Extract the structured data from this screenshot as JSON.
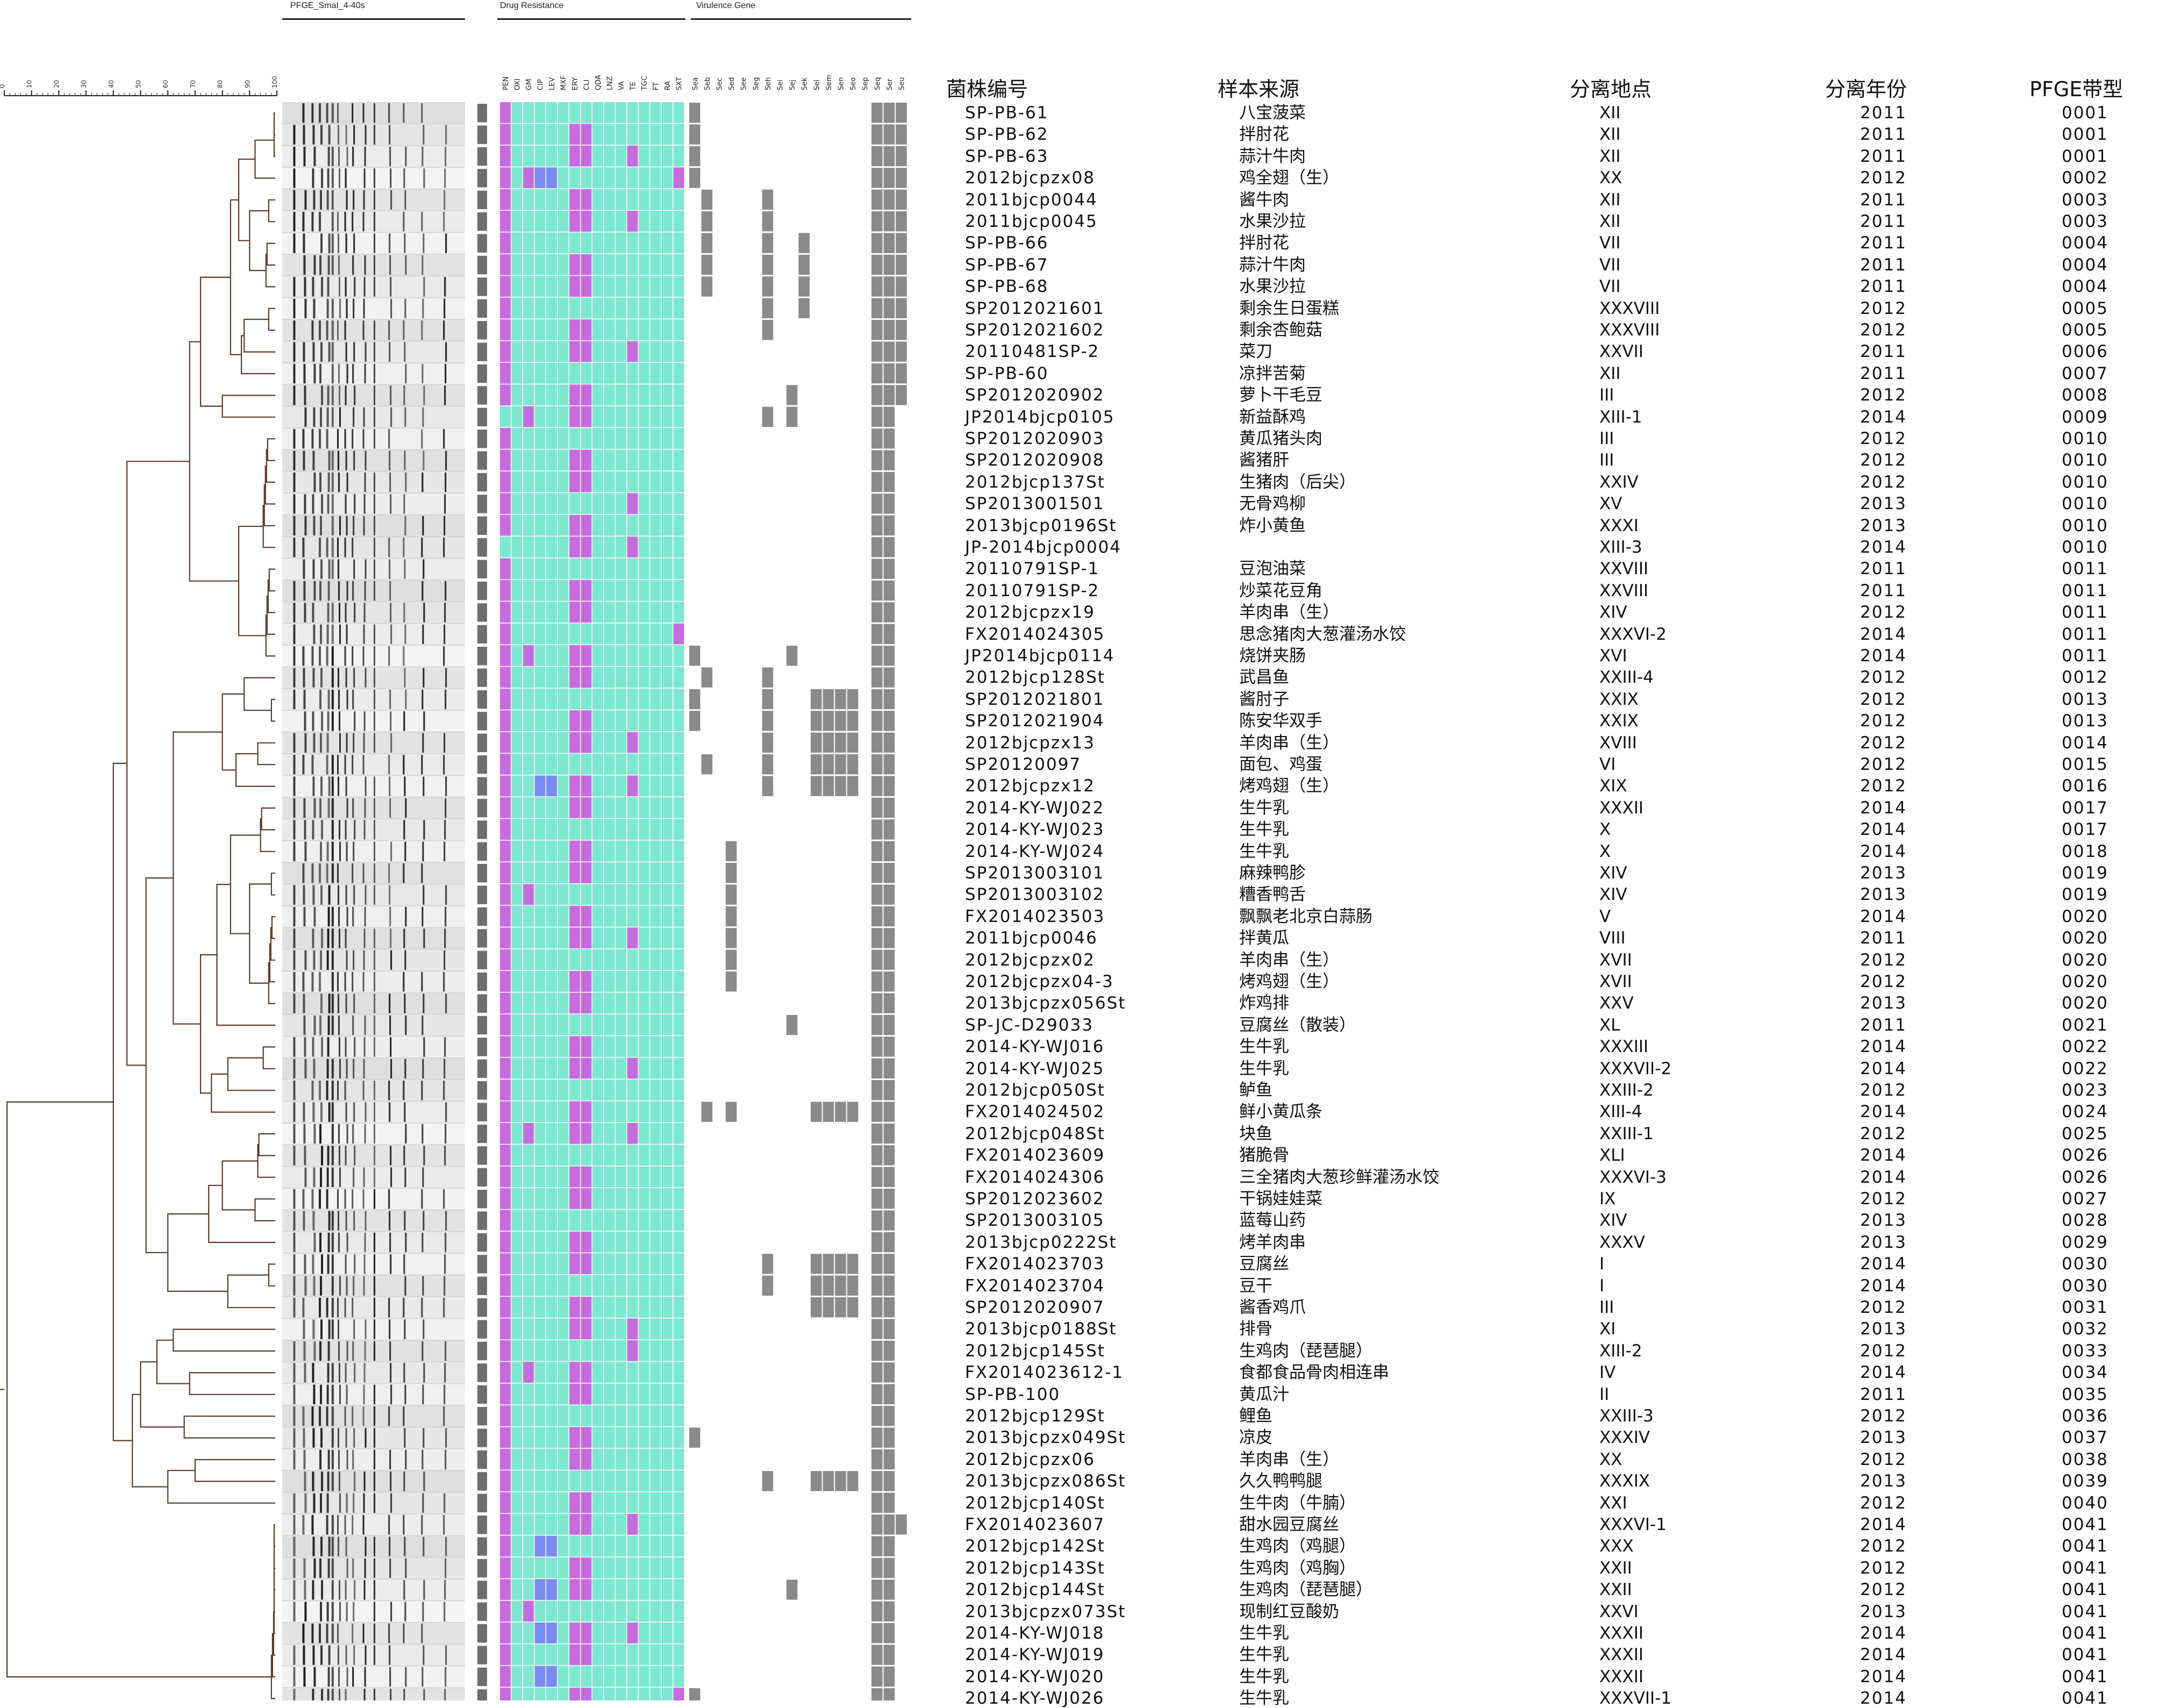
{
  "sections": {
    "pfge_label": "PFGE_SmaI_4-40s",
    "drug_label": "Drug Resistance",
    "virulence_label": "Virulence Gene"
  },
  "scale_ticks": [
    "0",
    "10",
    "20",
    "30",
    "40",
    "50",
    "60",
    "70",
    "80",
    "90",
    "100"
  ],
  "drug_names": [
    "PEN",
    "OXI",
    "GM",
    "CIP",
    "LEV",
    "MXF",
    "ERY",
    "CLI",
    "QDA",
    "LNZ",
    "VA",
    "TE",
    "TGC",
    "FT",
    "RA",
    "SXT"
  ],
  "gene_names": [
    "Sea",
    "Seb",
    "Sec",
    "Sed",
    "See",
    "Seg",
    "Seh",
    "Sei",
    "Sej",
    "Sek",
    "Sel",
    "Sem",
    "Sen",
    "Seo",
    "Sep",
    "Seq",
    "Ser",
    "Seu"
  ],
  "headers": [
    "菌株编号",
    "样本来源",
    "分离地点",
    "分离年份",
    "PFGE带型"
  ],
  "colors": {
    "resistant": "#c76be0",
    "intermediate": "#7a8cf0",
    "sensitive": "#7de8d0",
    "gene_present": "#8a8a8a",
    "marker": "#6e6e6e"
  },
  "rows": [
    [
      "SP-PB-61",
      "八宝菠菜",
      "XII",
      "2011",
      "0001"
    ],
    [
      "SP-PB-62",
      "拌肘花",
      "XII",
      "2011",
      "0001"
    ],
    [
      "SP-PB-63",
      "蒜汁牛肉",
      "XII",
      "2011",
      "0001"
    ],
    [
      "2012bjcpzx08",
      "鸡全翅（生）",
      "XX",
      "2012",
      "0002"
    ],
    [
      "2011bjcp0044",
      "酱牛肉",
      "XII",
      "2011",
      "0003"
    ],
    [
      "2011bjcp0045",
      "水果沙拉",
      "XII",
      "2011",
      "0003"
    ],
    [
      "SP-PB-66",
      "拌肘花",
      "VII",
      "2011",
      "0004"
    ],
    [
      "SP-PB-67",
      "蒜汁牛肉",
      "VII",
      "2011",
      "0004"
    ],
    [
      "SP-PB-68",
      "水果沙拉",
      "VII",
      "2011",
      "0004"
    ],
    [
      "SP2012021601",
      "剩余生日蛋糕",
      "XXXVIII",
      "2012",
      "0005"
    ],
    [
      "SP2012021602",
      "剩余杏鲍菇",
      "XXXVIII",
      "2012",
      "0005"
    ],
    [
      "20110481SP-2",
      "菜刀",
      "XXVII",
      "2011",
      "0006"
    ],
    [
      "SP-PB-60",
      "凉拌苦菊",
      "XII",
      "2011",
      "0007"
    ],
    [
      "SP2012020902",
      "萝卜干毛豆",
      "III",
      "2012",
      "0008"
    ],
    [
      "JP2014bjcp0105",
      "新益酥鸡",
      "XIII-1",
      "2014",
      "0009"
    ],
    [
      "SP2012020903",
      "黄瓜猪头肉",
      "III",
      "2012",
      "0010"
    ],
    [
      "SP2012020908",
      "酱猪肝",
      "III",
      "2012",
      "0010"
    ],
    [
      "2012bjcp137St",
      "生猪肉（后尖）",
      "XXIV",
      "2012",
      "0010"
    ],
    [
      "SP2013001501",
      "无骨鸡柳",
      "XV",
      "2013",
      "0010"
    ],
    [
      "2013bjcp0196St",
      "炸小黄鱼",
      "XXXI",
      "2013",
      "0010"
    ],
    [
      "JP-2014bjcp0004",
      "",
      "XIII-3",
      "2014",
      "0010"
    ],
    [
      "20110791SP-1",
      "豆泡油菜",
      "XXVIII",
      "2011",
      "0011"
    ],
    [
      "20110791SP-2",
      "炒菜花豆角",
      "XXVIII",
      "2011",
      "0011"
    ],
    [
      "2012bjcpzx19",
      "羊肉串（生）",
      "XIV",
      "2012",
      "0011"
    ],
    [
      "FX2014024305",
      "思念猪肉大葱灌汤水饺",
      "XXXVI-2",
      "2014",
      "0011"
    ],
    [
      "JP2014bjcp0114",
      "烧饼夹肠",
      "XVI",
      "2014",
      "0011"
    ],
    [
      "2012bjcp128St",
      "武昌鱼",
      "XXIII-4",
      "2012",
      "0012"
    ],
    [
      "SP2012021801",
      "酱肘子",
      "XXIX",
      "2012",
      "0013"
    ],
    [
      "SP2012021904",
      "陈安华双手",
      "XXIX",
      "2012",
      "0013"
    ],
    [
      "2012bjcpzx13",
      "羊肉串（生）",
      "XVIII",
      "2012",
      "0014"
    ],
    [
      "SP20120097",
      "面包、鸡蛋",
      "VI",
      "2012",
      "0015"
    ],
    [
      "2012bjcpzx12",
      "烤鸡翅（生）",
      "XIX",
      "2012",
      "0016"
    ],
    [
      "2014-KY-WJ022",
      "生牛乳",
      "XXXII",
      "2014",
      "0017"
    ],
    [
      "2014-KY-WJ023",
      "生牛乳",
      "X",
      "2014",
      "0017"
    ],
    [
      "2014-KY-WJ024",
      "生牛乳",
      "X",
      "2014",
      "0018"
    ],
    [
      "SP2013003101",
      "麻辣鸭胗",
      "XIV",
      "2013",
      "0019"
    ],
    [
      "SP2013003102",
      "糟香鸭舌",
      "XIV",
      "2013",
      "0019"
    ],
    [
      "FX2014023503",
      "飘飘老北京白蒜肠",
      "V",
      "2014",
      "0020"
    ],
    [
      "2011bjcp0046",
      "拌黄瓜",
      "VIII",
      "2011",
      "0020"
    ],
    [
      "2012bjcpzx02",
      "羊肉串（生）",
      "XVII",
      "2012",
      "0020"
    ],
    [
      "2012bjcpzx04-3",
      "烤鸡翅（生）",
      "XVII",
      "2012",
      "0020"
    ],
    [
      "2013bjcpzx056St",
      "炸鸡排",
      "XXV",
      "2013",
      "0020"
    ],
    [
      "SP-JC-D29033",
      "豆腐丝（散装）",
      "XL",
      "2011",
      "0021"
    ],
    [
      "2014-KY-WJ016",
      "生牛乳",
      "XXXIII",
      "2014",
      "0022"
    ],
    [
      "2014-KY-WJ025",
      "生牛乳",
      "XXXVII-2",
      "2014",
      "0022"
    ],
    [
      "2012bjcp050St",
      "鲈鱼",
      "XXIII-2",
      "2012",
      "0023"
    ],
    [
      "FX2014024502",
      "鲜小黄瓜条",
      "XIII-4",
      "2014",
      "0024"
    ],
    [
      "2012bjcp048St",
      "块鱼",
      "XXIII-1",
      "2012",
      "0025"
    ],
    [
      "FX2014023609",
      "猪脆骨",
      "XLI",
      "2014",
      "0026"
    ],
    [
      "FX2014024306",
      "三全猪肉大葱珍鲜灌汤水饺",
      "XXXVI-3",
      "2014",
      "0026"
    ],
    [
      "SP2012023602",
      "干锅娃娃菜",
      "IX",
      "2012",
      "0027"
    ],
    [
      "SP2013003105",
      "蓝莓山药",
      "XIV",
      "2013",
      "0028"
    ],
    [
      "2013bjcp0222St",
      "烤羊肉串",
      "XXXV",
      "2013",
      "0029"
    ],
    [
      "FX2014023703",
      "豆腐丝",
      "I",
      "2014",
      "0030"
    ],
    [
      "FX2014023704",
      "豆干",
      "I",
      "2014",
      "0030"
    ],
    [
      "SP2012020907",
      "酱香鸡爪",
      "III",
      "2012",
      "0031"
    ],
    [
      "2013bjcp0188St",
      "排骨",
      "XI",
      "2013",
      "0032"
    ],
    [
      "2012bjcp145St",
      "生鸡肉（琵琶腿）",
      "XIII-2",
      "2012",
      "0033"
    ],
    [
      "FX2014023612-1",
      "食都食品骨肉相连串",
      "IV",
      "2014",
      "0034"
    ],
    [
      "SP-PB-100",
      "黄瓜汁",
      "II",
      "2011",
      "0035"
    ],
    [
      "2012bjcp129St",
      "鲤鱼",
      "XXIII-3",
      "2012",
      "0036"
    ],
    [
      "2013bjcpzx049St",
      "凉皮",
      "XXXIV",
      "2013",
      "0037"
    ],
    [
      "2012bjcpzx06",
      "羊肉串（生）",
      "XX",
      "2012",
      "0038"
    ],
    [
      "2013bjcpzx086St",
      "久久鸭鸭腿",
      "XXXIX",
      "2013",
      "0039"
    ],
    [
      "2012bjcp140St",
      "生牛肉（牛腩）",
      "XXI",
      "2012",
      "0040"
    ],
    [
      "FX2014023607",
      "甜水园豆腐丝",
      "XXXVI-1",
      "2014",
      "0041"
    ],
    [
      "2012bjcp142St",
      "生鸡肉（鸡腿）",
      "XXX",
      "2012",
      "0041"
    ],
    [
      "2012bjcp143St",
      "生鸡肉（鸡胸）",
      "XXII",
      "2012",
      "0041"
    ],
    [
      "2012bjcp144St",
      "生鸡肉（琵琶腿）",
      "XXII",
      "2012",
      "0041"
    ],
    [
      "2013bjcpzx073St",
      "现制红豆酸奶",
      "XXVI",
      "2013",
      "0041"
    ],
    [
      "2014-KY-WJ018",
      "生牛乳",
      "XXXII",
      "2014",
      "0041"
    ],
    [
      "2014-KY-WJ019",
      "生牛乳",
      "XXXII",
      "2014",
      "0041"
    ],
    [
      "2014-KY-WJ020",
      "生牛乳",
      "XXXII",
      "2014",
      "0041"
    ],
    [
      "2014-KY-WJ026",
      "生牛乳",
      "XXXVII-1",
      "2014",
      "0041"
    ]
  ]
}
